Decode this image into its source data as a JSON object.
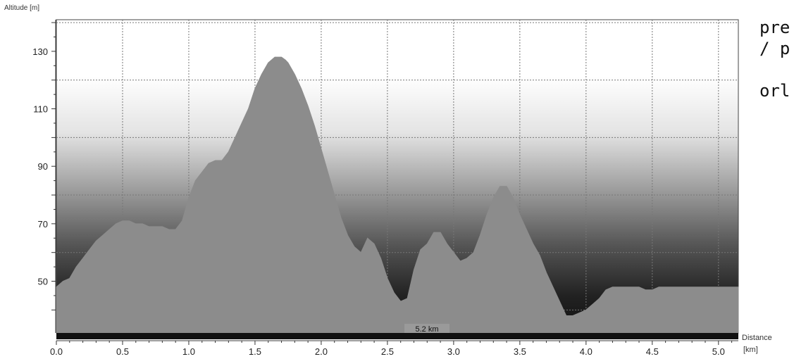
{
  "chart_data": {
    "type": "area",
    "ylabel": "Altitude [m]",
    "xlabel": "Distance",
    "xunit": "[km]",
    "xlim": [
      0.0,
      5.15
    ],
    "ylim": [
      32,
      141
    ],
    "x_ticks": [
      "0.0",
      "0.5",
      "1.0",
      "1.5",
      "2.0",
      "2.5",
      "3.0",
      "3.5",
      "4.0",
      "4.5",
      "5.0"
    ],
    "y_ticks": [
      "130",
      "110",
      "90",
      "70",
      "50"
    ],
    "total_distance": "5.2 km",
    "grid": true,
    "series": [
      {
        "values_x": [
          0.0,
          0.05,
          0.1,
          0.15,
          0.2,
          0.25,
          0.3,
          0.35,
          0.4,
          0.45,
          0.5,
          0.55,
          0.6,
          0.65,
          0.7,
          0.75,
          0.8,
          0.85,
          0.9,
          0.95,
          1.0,
          1.05,
          1.1,
          1.15,
          1.2,
          1.25,
          1.3,
          1.35,
          1.4,
          1.45,
          1.5,
          1.55,
          1.6,
          1.65,
          1.7,
          1.73,
          1.75,
          1.8,
          1.85,
          1.9,
          1.95,
          2.0,
          2.05,
          2.1,
          2.15,
          2.2,
          2.25,
          2.3,
          2.35,
          2.4,
          2.45,
          2.5,
          2.55,
          2.6,
          2.65,
          2.7,
          2.75,
          2.8,
          2.85,
          2.9,
          2.95,
          3.0,
          3.05,
          3.1,
          3.15,
          3.2,
          3.25,
          3.3,
          3.35,
          3.4,
          3.45,
          3.5,
          3.55,
          3.6,
          3.65,
          3.7,
          3.75,
          3.8,
          3.85,
          3.9,
          3.95,
          4.0,
          4.05,
          4.1,
          4.15,
          4.2,
          4.25,
          4.3,
          4.35,
          4.4,
          4.45,
          4.5,
          4.55,
          4.6,
          4.65,
          4.7,
          4.75,
          4.8,
          4.85,
          4.9,
          4.95,
          5.0,
          5.05,
          5.1,
          5.15
        ],
        "values_y": [
          48,
          50,
          51,
          55,
          58,
          61,
          64,
          66,
          68,
          70,
          71,
          71,
          70,
          70,
          69,
          69,
          69,
          68,
          68,
          71,
          79,
          85,
          88,
          91,
          92,
          92,
          95,
          100,
          105,
          110,
          117,
          122,
          126,
          128,
          128,
          127,
          126,
          122,
          117,
          111,
          104,
          96,
          88,
          80,
          72,
          66,
          62,
          60,
          65,
          63,
          58,
          51,
          46,
          43,
          44,
          54,
          61,
          63,
          67,
          67,
          63,
          60,
          57,
          58,
          60,
          66,
          73,
          79,
          83,
          83,
          79,
          73,
          68,
          63,
          59,
          53,
          48,
          43,
          38,
          38,
          39,
          40,
          42,
          44,
          47,
          48,
          48,
          48,
          48,
          48,
          47,
          47,
          48,
          48,
          48,
          48,
          48,
          48,
          48,
          48,
          48,
          48,
          48,
          48,
          48
        ]
      }
    ]
  },
  "side_text": {
    "line1": "pre",
    "line2": "/ p",
    "line3": "orl"
  },
  "colors": {
    "fill": "#8c8c8c",
    "axis_bar": "#111111"
  }
}
